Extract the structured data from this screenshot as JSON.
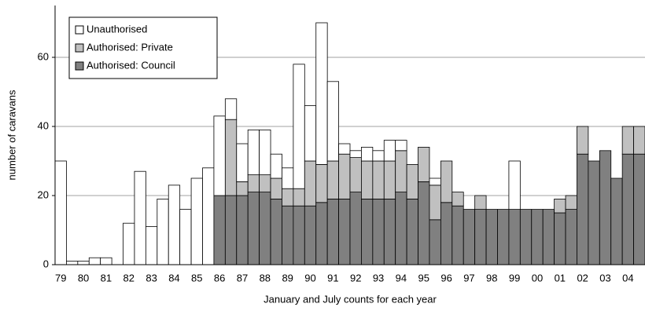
{
  "chart_data": {
    "type": "stacked_bar",
    "x_label": "January and July counts for each year",
    "y_label": "number of caravans",
    "categories": [
      "79",
      null,
      "80",
      null,
      "81",
      null,
      "82",
      null,
      "83",
      null,
      "84",
      null,
      "85",
      null,
      "86",
      null,
      "87",
      null,
      "88",
      null,
      "89",
      null,
      "90",
      null,
      "91",
      null,
      "92",
      null,
      "93",
      null,
      "94",
      null,
      "95",
      null,
      "96",
      null,
      "97",
      null,
      "98",
      null,
      "99",
      null,
      "00",
      null,
      "01",
      null,
      "02",
      null,
      "03",
      null,
      "04",
      null
    ],
    "series": [
      {
        "name": "Unauthorised",
        "color": "#ffffff",
        "values": [
          30,
          1,
          1,
          2,
          2,
          0,
          12,
          27,
          11,
          19,
          23,
          16,
          25,
          28,
          23,
          6,
          11,
          13,
          13,
          7,
          6,
          36,
          16,
          41,
          23,
          3,
          2,
          4,
          3,
          6,
          3,
          0,
          0,
          2,
          0,
          0,
          0,
          0,
          0,
          0,
          14,
          0,
          0,
          0,
          0,
          0,
          0,
          0,
          0,
          0,
          0,
          0
        ]
      },
      {
        "name": "Authorised: Private",
        "color": "#c0c0c0",
        "values": [
          0,
          0,
          0,
          0,
          0,
          0,
          0,
          0,
          0,
          0,
          0,
          0,
          0,
          0,
          0,
          22,
          4,
          5,
          5,
          6,
          5,
          5,
          13,
          11,
          11,
          13,
          10,
          11,
          11,
          11,
          12,
          10,
          10,
          10,
          12,
          4,
          0,
          4,
          0,
          0,
          0,
          0,
          0,
          0,
          4,
          4,
          8,
          0,
          0,
          0,
          8,
          8
        ]
      },
      {
        "name": "Authorised: Council",
        "color": "#808080",
        "values": [
          0,
          0,
          0,
          0,
          0,
          0,
          0,
          0,
          0,
          0,
          0,
          0,
          0,
          0,
          20,
          20,
          20,
          21,
          21,
          19,
          17,
          17,
          17,
          18,
          19,
          19,
          21,
          19,
          19,
          19,
          21,
          19,
          24,
          13,
          18,
          17,
          16,
          16,
          16,
          16,
          16,
          16,
          16,
          16,
          15,
          16,
          32,
          30,
          33,
          25,
          32,
          32
        ]
      }
    ],
    "ylim": [
      0,
      75
    ],
    "yticks": [
      0,
      20,
      40,
      60
    ],
    "grid": true,
    "legend": "upper left"
  }
}
